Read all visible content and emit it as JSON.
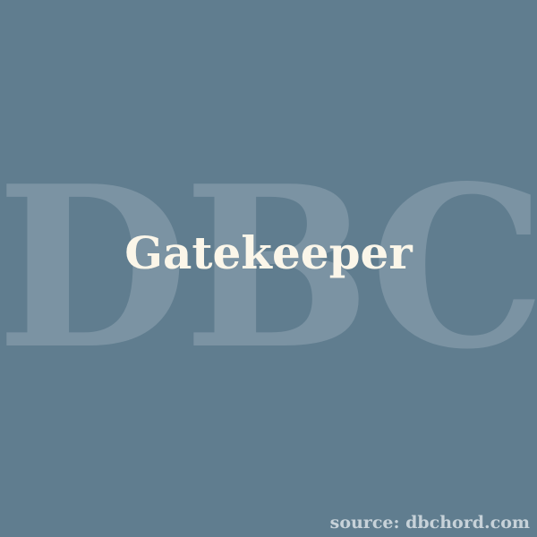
{
  "colors": {
    "background": "#607d8f",
    "watermark": "#7b93a3",
    "title": "#fbf6e9",
    "source": "#c7d2d9"
  },
  "watermark_text": "DBC",
  "title": "Gatekeeper",
  "source": "source: dbchord.com"
}
